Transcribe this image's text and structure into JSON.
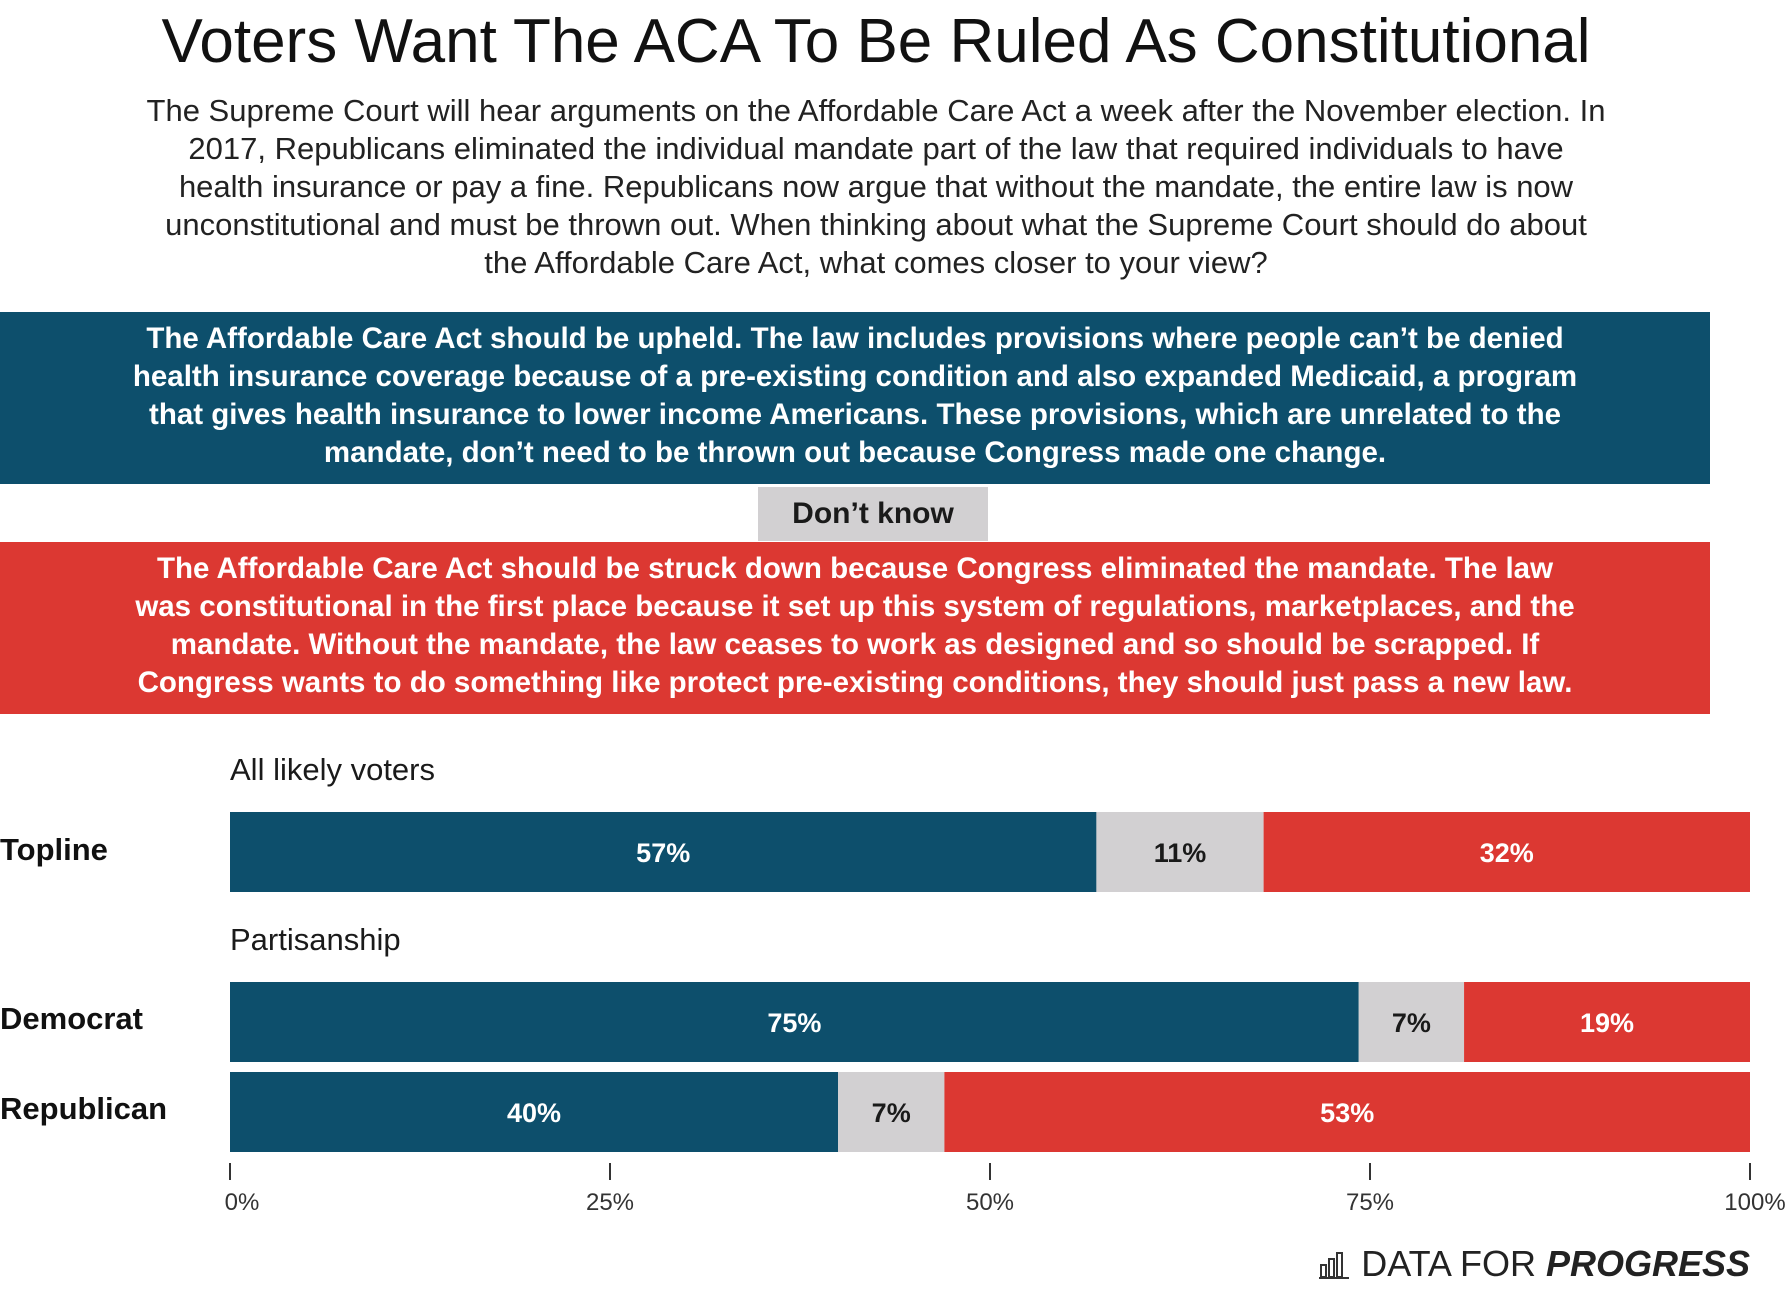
{
  "title": "Voters Want The ACA To Be Ruled As Constitutional",
  "subtitle_lines": [
    "The Supreme Court will hear arguments on the Affordable Care Act a week after the November election. In",
    "2017, Republicans eliminated the individual mandate part of the law that required individuals to have",
    "health insurance or pay a fine. Republicans now argue that without the mandate, the entire law is now",
    "unconstitutional and must be thrown out. When thinking about what the Supreme Court should do about",
    "the Affordable Care Act, what comes closer to your view?"
  ],
  "legend": {
    "upheld_lines": [
      "The Affordable Care Act should be upheld. The law includes provisions where people can’t be denied",
      "health insurance coverage because of a pre-existing condition and also expanded Medicaid, a program",
      "that gives health insurance to lower income Americans. These provisions, which are unrelated to the",
      "mandate, don’t need to be thrown out because Congress made one change."
    ],
    "dont_know": "Don’t know",
    "struck_lines": [
      "The Affordable Care Act should be struck down because Congress eliminated the mandate. The law",
      "was constitutional in the first place because it set up this system of regulations, marketplaces, and the",
      "mandate. Without the mandate, the law ceases to work as designed and so should be scrapped. If",
      "Congress wants to do something like protect pre-existing conditions, they should just pass a new law."
    ]
  },
  "colors": {
    "upheld": "#0d4f6c",
    "dont_know": "#d2d0d2",
    "struck": "#dc3832",
    "upheld_text": "#ffffff",
    "dont_know_text": "#1a1a1a",
    "struck_text": "#ffffff"
  },
  "chart_data": {
    "type": "bar",
    "orientation": "horizontal",
    "stacked": true,
    "title": "Voters Want The ACA To Be Ruled As Constitutional",
    "sections": [
      {
        "label": "All likely voters",
        "rows": [
          "Topline"
        ]
      },
      {
        "label": "Partisanship",
        "rows": [
          "Democrat",
          "Republican"
        ]
      }
    ],
    "categories": [
      "Topline",
      "Democrat",
      "Republican"
    ],
    "series": [
      {
        "name": "Upheld",
        "values": [
          57,
          75,
          40
        ]
      },
      {
        "name": "Don’t know",
        "values": [
          11,
          7,
          7
        ]
      },
      {
        "name": "Struck down",
        "values": [
          32,
          19,
          53
        ]
      }
    ],
    "value_labels": [
      [
        "57%",
        "11%",
        "32%"
      ],
      [
        "75%",
        "7%",
        "19%"
      ],
      [
        "40%",
        "7%",
        "53%"
      ]
    ],
    "xlim": [
      0,
      100
    ],
    "xticks": [
      0,
      25,
      50,
      75,
      100
    ],
    "xtick_labels": [
      "0%",
      "25%",
      "50%",
      "75%",
      "100%"
    ],
    "xlabel": "",
    "ylabel": "",
    "grid": false,
    "legend_position": "top"
  },
  "brand": {
    "light": "DATA FOR",
    "bold": "PROGRESS"
  }
}
